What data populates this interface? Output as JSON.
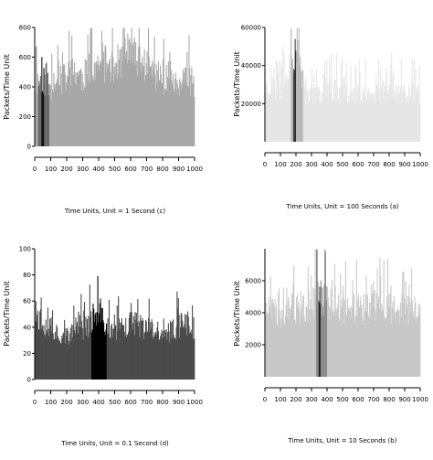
{
  "chart_data": [
    {
      "id": "c",
      "type": "bar",
      "title": "",
      "ylabel": "Packets/Time Unit",
      "xlabel": "Time Units, Unit = 1 Second (c)",
      "xlim": [
        0,
        1000
      ],
      "ylim": [
        0,
        800
      ],
      "xticks": [
        "0",
        "100",
        "200",
        "300",
        "400",
        "500",
        "600",
        "700",
        "800",
        "900",
        "1000"
      ],
      "yticks": [
        "0",
        "200",
        "400",
        "600",
        "800"
      ],
      "legend": "none",
      "grid": false,
      "colors": {
        "series": "#a8a8a8",
        "highlight": "#111111",
        "shade": "#6a6a6a",
        "axis": "#000000"
      },
      "highlight_range": [
        40,
        58
      ],
      "shade_range": [
        20,
        90
      ],
      "envelope": {
        "x": [
          0,
          50,
          100,
          150,
          200,
          250,
          300,
          350,
          400,
          450,
          500,
          550,
          600,
          650,
          700,
          750,
          800,
          850,
          900,
          950,
          1000
        ],
        "y": [
          430,
          460,
          400,
          450,
          480,
          520,
          470,
          560,
          520,
          580,
          560,
          600,
          640,
          590,
          560,
          500,
          470,
          440,
          420,
          460,
          400
        ]
      }
    },
    {
      "id": "a",
      "type": "bar",
      "title": "",
      "ylabel": "Packets/Time Unit",
      "xlabel": "Time Units, Unit = 100 Seconds (a)",
      "xlim": [
        0,
        1000
      ],
      "ylim": [
        0,
        60000
      ],
      "xticks": [
        "0",
        "100",
        "200",
        "300",
        "400",
        "500",
        "600",
        "700",
        "800",
        "900",
        "1000"
      ],
      "yticks": [
        "20000",
        "40000",
        "60000"
      ],
      "legend": "none",
      "grid": false,
      "colors": {
        "series": "#e6e6e6",
        "highlight": "#333333",
        "shade": "#b8b8b8",
        "axis": "#000000"
      },
      "highlight_range": [
        185,
        200
      ],
      "shade_range": [
        165,
        245
      ],
      "envelope": {
        "x": [
          0,
          50,
          100,
          150,
          200,
          250,
          300,
          350,
          400,
          450,
          500,
          550,
          600,
          650,
          700,
          750,
          800,
          850,
          900,
          950,
          1000
        ],
        "y": [
          30000,
          29000,
          28000,
          36000,
          52000,
          30000,
          26000,
          24000,
          29000,
          28000,
          27000,
          25000,
          26000,
          27000,
          24000,
          27000,
          28000,
          27000,
          25000,
          29000,
          26000
        ]
      }
    },
    {
      "id": "d",
      "type": "bar",
      "title": "",
      "ylabel": "Packets/Time Unit",
      "xlabel": "Time Units, Unit = 0.1 Second (d)",
      "xlim": [
        0,
        1000
      ],
      "ylim": [
        0,
        100
      ],
      "xticks": [
        "0",
        "100",
        "200",
        "300",
        "400",
        "500",
        "600",
        "700",
        "800",
        "900",
        "1000"
      ],
      "yticks": [
        "0",
        "20",
        "40",
        "60",
        "80",
        "100"
      ],
      "legend": "none",
      "grid": false,
      "colors": {
        "series": "#4a4a4a",
        "highlight": "#000000",
        "shade": "#000000",
        "axis": "#000000"
      },
      "highlight_range": [
        355,
        450
      ],
      "shade_range": [
        355,
        450
      ],
      "envelope": {
        "x": [
          0,
          50,
          100,
          150,
          200,
          250,
          300,
          350,
          400,
          450,
          500,
          550,
          600,
          650,
          700,
          750,
          800,
          850,
          900,
          950,
          1000
        ],
        "y": [
          52,
          45,
          40,
          36,
          34,
          36,
          40,
          44,
          50,
          42,
          38,
          40,
          44,
          42,
          40,
          38,
          36,
          38,
          42,
          44,
          40
        ]
      }
    },
    {
      "id": "b",
      "type": "bar",
      "title": "",
      "ylabel": "Packets/Time Unit",
      "xlabel": "Time Units, Unit = 10 Seconds (b)",
      "xlim": [
        0,
        1000
      ],
      "ylim": [
        0,
        8000
      ],
      "xticks": [
        "0",
        "100",
        "200",
        "300",
        "400",
        "500",
        "600",
        "700",
        "800",
        "900",
        "1000"
      ],
      "yticks": [
        "2000",
        "4000",
        "6000"
      ],
      "legend": "none",
      "grid": false,
      "colors": {
        "series": "#c8c8c8",
        "highlight": "#222222",
        "shade": "#8c8c8c",
        "axis": "#000000"
      },
      "highlight_range": [
        345,
        360
      ],
      "shade_range": [
        330,
        400
      ],
      "envelope": {
        "x": [
          0,
          50,
          100,
          150,
          200,
          250,
          300,
          350,
          400,
          450,
          500,
          550,
          600,
          650,
          700,
          750,
          800,
          850,
          900,
          950,
          1000
        ],
        "y": [
          4300,
          4200,
          4100,
          4300,
          4400,
          4500,
          4600,
          5200,
          4800,
          4600,
          4400,
          4300,
          4500,
          4400,
          4300,
          4500,
          4400,
          4300,
          4400,
          4200,
          4300
        ]
      }
    }
  ]
}
